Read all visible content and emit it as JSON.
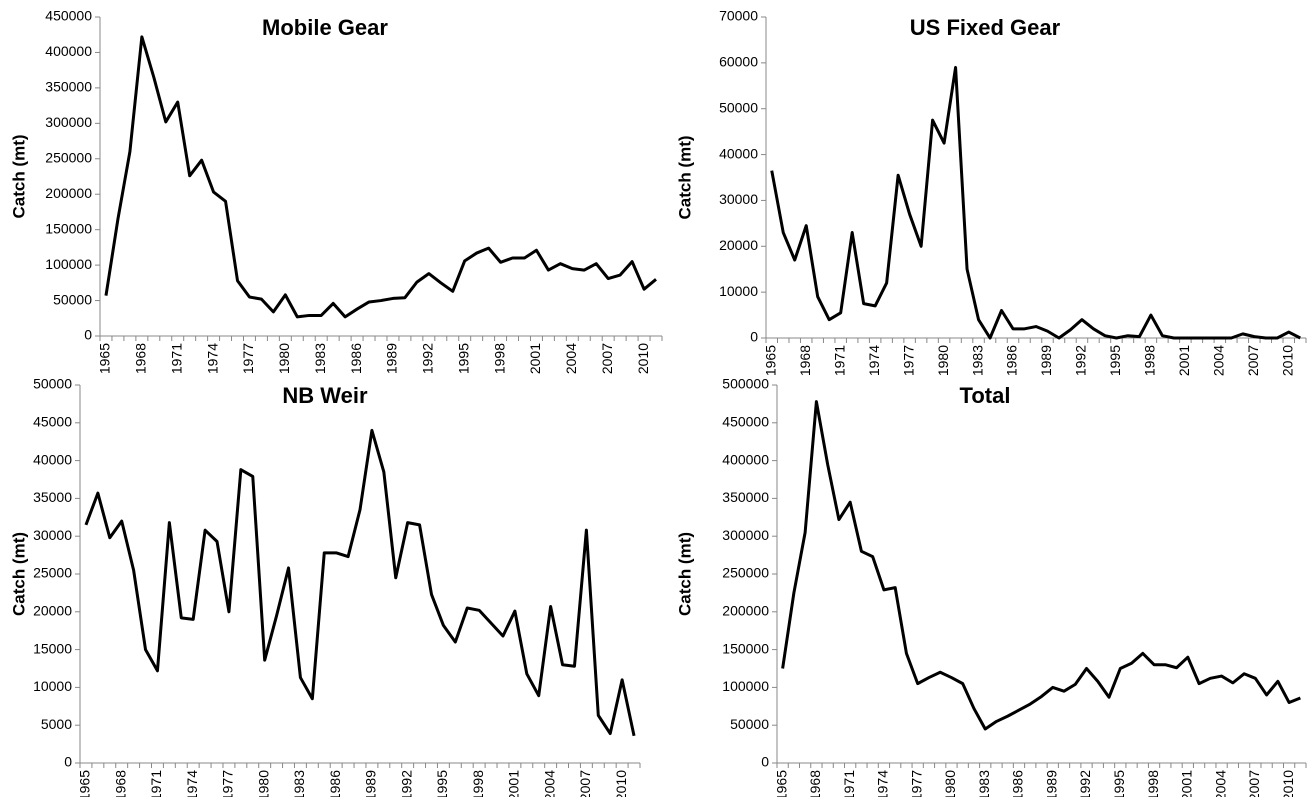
{
  "chart_data": [
    {
      "type": "line",
      "title": "Mobile Gear",
      "y_label": "Catch (mt)",
      "color": "#000000",
      "categories": [
        "1965",
        null,
        null,
        "1968",
        null,
        null,
        "1971",
        null,
        null,
        "1974",
        null,
        null,
        "1977",
        null,
        null,
        "1980",
        null,
        null,
        "1983",
        null,
        null,
        "1986",
        null,
        null,
        "1989",
        null,
        null,
        "1992",
        null,
        null,
        "1995",
        null,
        null,
        "1998",
        null,
        null,
        "2001",
        null,
        null,
        "2004",
        null,
        null,
        "2007",
        null,
        null,
        "2010",
        null
      ],
      "values": [
        57000,
        165000,
        260000,
        422000,
        365000,
        302000,
        330000,
        226000,
        248000,
        203000,
        190000,
        78000,
        55000,
        52000,
        34000,
        58000,
        27000,
        29000,
        29000,
        46000,
        27000,
        38000,
        48000,
        50000,
        53000,
        54000,
        76000,
        88000,
        75000,
        63000,
        106000,
        117000,
        124000,
        104000,
        110000,
        110000,
        121000,
        93000,
        102000,
        95000,
        93000,
        102000,
        81000,
        86000,
        105000,
        66000,
        80000
      ],
      "ylim": [
        0,
        450000
      ],
      "yticks": [
        0,
        50000,
        100000,
        150000,
        200000,
        250000,
        300000,
        350000,
        400000,
        450000
      ]
    },
    {
      "type": "line",
      "title": "US Fixed Gear",
      "y_label": "Catch (mt)",
      "color": "#000000",
      "categories": [
        "1965",
        null,
        null,
        "1968",
        null,
        null,
        "1971",
        null,
        null,
        "1974",
        null,
        null,
        "1977",
        null,
        null,
        "1980",
        null,
        null,
        "1983",
        null,
        null,
        "1986",
        null,
        null,
        "1989",
        null,
        null,
        "1992",
        null,
        null,
        "1995",
        null,
        null,
        "1998",
        null,
        null,
        "2001",
        null,
        null,
        "2004",
        null,
        null,
        "2007",
        null,
        null,
        "2010",
        null
      ],
      "values": [
        36500,
        23000,
        17000,
        24500,
        9000,
        4000,
        5500,
        23000,
        7500,
        7000,
        12000,
        35500,
        27000,
        20000,
        47500,
        42500,
        59000,
        15000,
        4000,
        0,
        6000,
        2000,
        2000,
        2500,
        1500,
        0,
        1800,
        4000,
        2000,
        500,
        0,
        500,
        300,
        5000,
        500,
        0,
        0,
        0,
        0,
        0,
        0,
        900,
        300,
        0,
        0,
        1300,
        0
      ],
      "ylim": [
        0,
        70000
      ],
      "yticks": [
        0,
        10000,
        20000,
        30000,
        40000,
        50000,
        60000,
        70000
      ]
    },
    {
      "type": "line",
      "title": "NB Weir",
      "y_label": "Catch (mt)",
      "color": "#000000",
      "categories": [
        "1965",
        null,
        null,
        "1968",
        null,
        null,
        "1971",
        null,
        null,
        "1974",
        null,
        null,
        "1977",
        null,
        null,
        "1980",
        null,
        null,
        "1983",
        null,
        null,
        "1986",
        null,
        null,
        "1989",
        null,
        null,
        "1992",
        null,
        null,
        "1995",
        null,
        null,
        "1998",
        null,
        null,
        "2001",
        null,
        null,
        "2004",
        null,
        null,
        "2007",
        null,
        null,
        "2010",
        null
      ],
      "values": [
        31500,
        35700,
        29800,
        32000,
        25500,
        15000,
        12200,
        31800,
        19200,
        19000,
        30800,
        29300,
        20000,
        38800,
        37900,
        13600,
        19500,
        25800,
        11300,
        8500,
        27800,
        27800,
        27300,
        33500,
        44000,
        38500,
        24500,
        31800,
        31500,
        22300,
        18200,
        16000,
        20500,
        20200,
        18500,
        16800,
        20100,
        11800,
        8900,
        20700,
        13000,
        12800,
        30800,
        6300,
        3900,
        11000,
        3600
      ],
      "ylim": [
        0,
        50000
      ],
      "yticks": [
        0,
        5000,
        10000,
        15000,
        20000,
        25000,
        30000,
        35000,
        40000,
        45000,
        50000
      ]
    },
    {
      "type": "line",
      "title": "Total",
      "y_label": "Catch (mt)",
      "color": "#000000",
      "categories": [
        "1965",
        null,
        null,
        "1968",
        null,
        null,
        "1971",
        null,
        null,
        "1974",
        null,
        null,
        "1977",
        null,
        null,
        "1980",
        null,
        null,
        "1983",
        null,
        null,
        "1986",
        null,
        null,
        "1989",
        null,
        null,
        "1992",
        null,
        null,
        "1995",
        null,
        null,
        "1998",
        null,
        null,
        "2001",
        null,
        null,
        "2004",
        null,
        null,
        "2007",
        null,
        null,
        "2010",
        null
      ],
      "values": [
        125000,
        225000,
        305000,
        478000,
        395000,
        322000,
        345000,
        280000,
        273000,
        229000,
        232000,
        145000,
        105000,
        113000,
        120000,
        113000,
        105000,
        72000,
        45000,
        55000,
        62000,
        70000,
        78000,
        88000,
        100000,
        95000,
        104000,
        125000,
        108000,
        87000,
        125000,
        132000,
        145000,
        130000,
        130000,
        126000,
        140000,
        105000,
        112000,
        115000,
        106000,
        118000,
        112000,
        90000,
        108000,
        80000,
        86000
      ],
      "ylim": [
        0,
        500000
      ],
      "yticks": [
        0,
        50000,
        100000,
        150000,
        200000,
        250000,
        300000,
        350000,
        400000,
        450000,
        500000
      ]
    }
  ]
}
